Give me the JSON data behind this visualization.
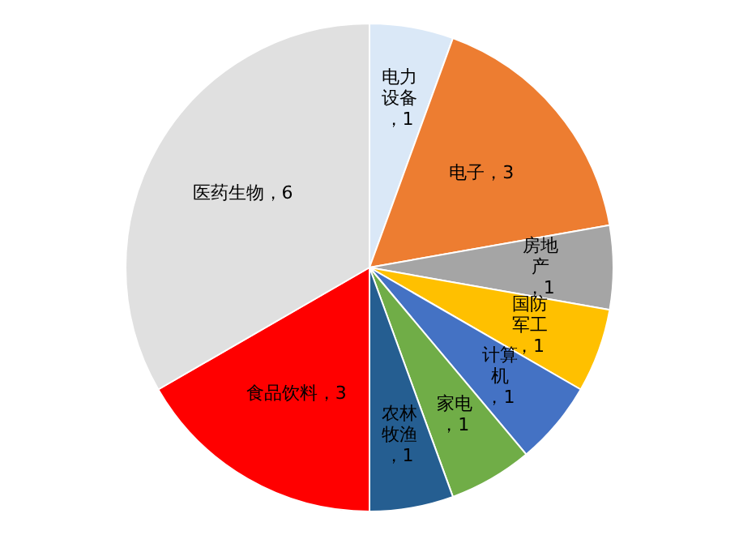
{
  "chart_data": {
    "type": "pie",
    "categories": [
      "电力设备",
      "电子",
      "房地产",
      "国防军工",
      "计算机",
      "家电",
      "农林牧渔",
      "食品饮料",
      "医药生物"
    ],
    "values": [
      1,
      3,
      1,
      1,
      1,
      1,
      1,
      3,
      6
    ],
    "colors": [
      "#dae8f7",
      "#ed7d31",
      "#a5a5a5",
      "#ffc000",
      "#4472c4",
      "#70ad47",
      "#255e91",
      "#ff0000",
      "#e0e0e0"
    ],
    "value_labels": [
      "，1",
      "，3",
      "，1",
      "，1",
      "，1",
      "，1",
      "，1",
      "，3",
      "，6"
    ],
    "legend": false
  }
}
